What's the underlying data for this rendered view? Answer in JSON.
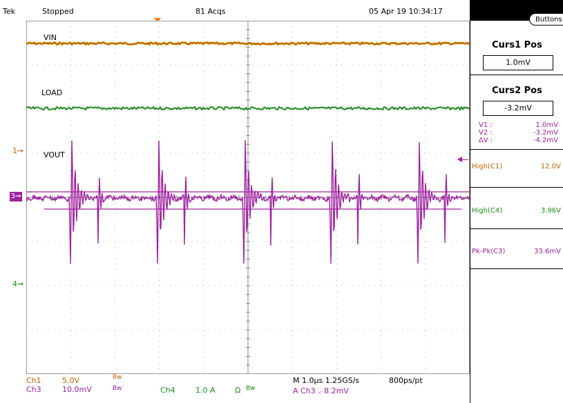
{
  "header": {
    "brand": "Tek",
    "status": "Stopped",
    "acqs": "81 Acqs",
    "datetime": "05 Apr 19 10:34:17"
  },
  "waveform_labels": {
    "vin": "VIN",
    "load": "LOAD",
    "vout": "VOUT"
  },
  "channel_markers": {
    "ch1": "1",
    "ch3": "3",
    "ch4": "4"
  },
  "colors": {
    "ch1": "#c06000",
    "ch1_light": "#e8b000",
    "ch3": "#a020a0",
    "ch4": "#1a8a1a",
    "cursor_panel": "#a020a0",
    "grid": "#b0b0b0"
  },
  "footer": {
    "ch1_label": "Ch1",
    "ch1_scale": "5.0V",
    "ch1_bw": "Bw",
    "ch3_label": "Ch3",
    "ch3_scale": "10.0mV",
    "ch3_bw": "Bw",
    "ch4_label": "Ch4",
    "ch4_scale": "1.0 A",
    "ch4_ohm": "Ω",
    "ch4_bw": "Bw",
    "timebase": "M 1.0µs 1.25GS/s",
    "resolution": "800ps/pt",
    "trigger": "A  Ch3  ⸝  8.2mV"
  },
  "panel": {
    "buttons_label": "Buttons",
    "curs1_title": "Curs1 Pos",
    "curs1_value": "1.0mV",
    "curs2_title": "Curs2 Pos",
    "curs2_value": "-3.2mV",
    "v1_label": "V1 :",
    "v1_value": "1.0mV",
    "v2_label": "V2 :",
    "v2_value": "-3.2mV",
    "dv_label": "ΔV :",
    "dv_value": "-4.2mV",
    "meas1_label": "High(C1)",
    "meas1_value": "12.0V",
    "meas2_label": "High(C4)",
    "meas2_value": "3.96V",
    "meas3_label": "Pk-Pk(C3)",
    "meas3_value": "33.6mV"
  }
}
